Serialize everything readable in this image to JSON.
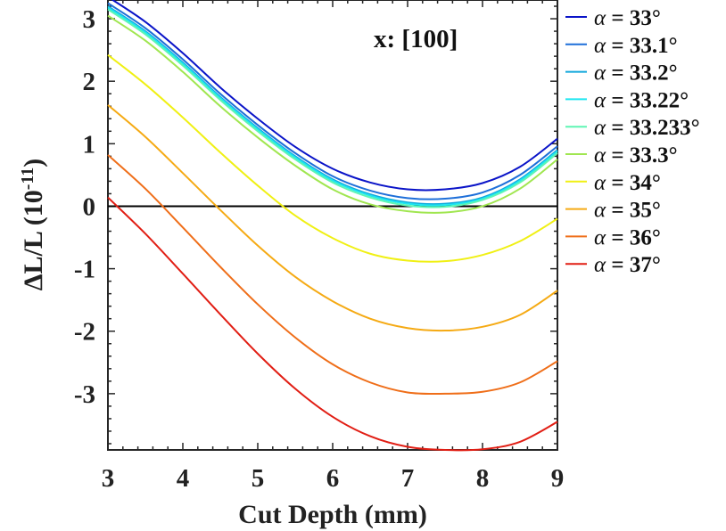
{
  "chart_data": {
    "type": "line",
    "title": "",
    "annotation": "x: [100]",
    "xlabel": "Cut Depth (mm)",
    "ylabel_main": "ΔL/L (10",
    "ylabel_exp": "-11",
    "ylabel_close": ")",
    "xlim": [
      3,
      9
    ],
    "ylim": [
      -3.9,
      3.3
    ],
    "xticks": [
      3,
      4,
      5,
      6,
      7,
      8,
      9
    ],
    "xtick_labels": [
      "3",
      "4",
      "5",
      "6",
      "7",
      "8",
      "9"
    ],
    "yticks": [
      3,
      2,
      1,
      0,
      -1,
      -2,
      -3
    ],
    "ytick_labels": [
      "3",
      "2",
      "1",
      "0",
      "-1",
      "-2",
      "-3"
    ],
    "reference_line_y": 0,
    "grid": false,
    "legend_position": "outside-right",
    "x": [
      3.0,
      3.5,
      4.0,
      4.5,
      5.0,
      5.5,
      6.0,
      6.5,
      7.0,
      7.5,
      8.0,
      8.5,
      9.0
    ],
    "series": [
      {
        "name": "α = 33°",
        "symbol": "α",
        "label": " = 33°",
        "color": "#0a14c8",
        "values": [
          3.35,
          2.95,
          2.45,
          1.9,
          1.4,
          0.95,
          0.6,
          0.38,
          0.27,
          0.27,
          0.37,
          0.63,
          1.08
        ]
      },
      {
        "name": "α = 33.1°",
        "symbol": "α",
        "label": " = 33.1°",
        "color": "#1e6fd9",
        "values": [
          3.25,
          2.85,
          2.35,
          1.8,
          1.3,
          0.85,
          0.48,
          0.25,
          0.13,
          0.12,
          0.22,
          0.5,
          0.96
        ]
      },
      {
        "name": "α = 33.2°",
        "symbol": "α",
        "label": " = 33.2°",
        "color": "#12a8dc",
        "values": [
          3.2,
          2.8,
          2.3,
          1.75,
          1.25,
          0.8,
          0.43,
          0.19,
          0.06,
          0.04,
          0.14,
          0.43,
          0.9
        ]
      },
      {
        "name": "α = 33.22°",
        "symbol": "α",
        "label": " = 33.22°",
        "color": "#1ee6f0",
        "values": [
          3.18,
          2.78,
          2.28,
          1.73,
          1.23,
          0.78,
          0.41,
          0.17,
          0.04,
          0.02,
          0.12,
          0.41,
          0.88
        ]
      },
      {
        "name": "α = 33.233°",
        "symbol": "α",
        "label": " = 33.233°",
        "color": "#5ef5b4",
        "values": [
          3.15,
          2.75,
          2.25,
          1.7,
          1.2,
          0.75,
          0.38,
          0.14,
          0.01,
          -0.01,
          0.1,
          0.38,
          0.85
        ]
      },
      {
        "name": "α = 33.3°",
        "symbol": "α",
        "label": " = 33.3°",
        "color": "#a0e650",
        "values": [
          3.05,
          2.65,
          2.15,
          1.6,
          1.1,
          0.65,
          0.27,
          0.03,
          -0.08,
          -0.1,
          0.0,
          0.28,
          0.75
        ]
      },
      {
        "name": "α = 34°",
        "symbol": "α",
        "label": " = 34°",
        "color": "#f0f014",
        "values": [
          2.42,
          1.95,
          1.42,
          0.86,
          0.33,
          -0.15,
          -0.51,
          -0.76,
          -0.87,
          -0.88,
          -0.78,
          -0.56,
          -0.2
        ]
      },
      {
        "name": "α = 35°",
        "symbol": "α",
        "label": " = 35°",
        "color": "#f5aa14",
        "values": [
          1.62,
          1.11,
          0.53,
          -0.06,
          -0.63,
          -1.13,
          -1.52,
          -1.8,
          -1.95,
          -1.99,
          -1.93,
          -1.74,
          -1.35
        ]
      },
      {
        "name": "α = 36°",
        "symbol": "α",
        "label": " = 36°",
        "color": "#ef6e19",
        "values": [
          0.82,
          0.28,
          -0.34,
          -0.97,
          -1.57,
          -2.1,
          -2.53,
          -2.82,
          -2.98,
          -3.0,
          -2.97,
          -2.82,
          -2.48
        ]
      },
      {
        "name": "α = 37°",
        "symbol": "α",
        "label": " = 37°",
        "color": "#e11e14",
        "values": [
          0.14,
          -0.44,
          -1.08,
          -1.73,
          -2.36,
          -2.92,
          -3.37,
          -3.68,
          -3.85,
          -3.9,
          -3.89,
          -3.77,
          -3.45
        ]
      }
    ]
  }
}
